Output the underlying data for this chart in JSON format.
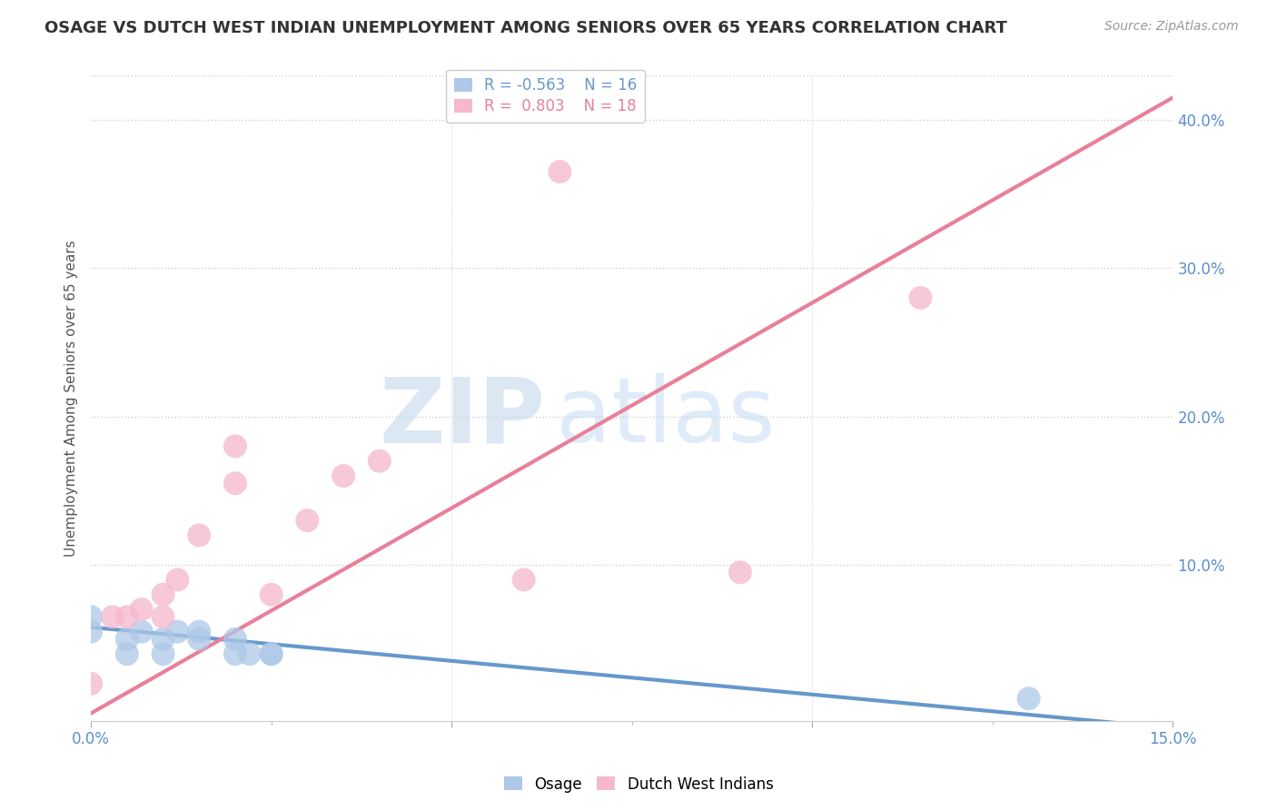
{
  "title": "OSAGE VS DUTCH WEST INDIAN UNEMPLOYMENT AMONG SENIORS OVER 65 YEARS CORRELATION CHART",
  "source": "Source: ZipAtlas.com",
  "ylabel": "Unemployment Among Seniors over 65 years",
  "xlim": [
    0.0,
    0.15
  ],
  "ylim": [
    -0.005,
    0.43
  ],
  "blue_scatter_x": [
    0.0,
    0.0,
    0.005,
    0.005,
    0.007,
    0.01,
    0.01,
    0.012,
    0.015,
    0.015,
    0.02,
    0.02,
    0.022,
    0.025,
    0.025,
    0.13
  ],
  "blue_scatter_y": [
    0.065,
    0.055,
    0.05,
    0.04,
    0.055,
    0.05,
    0.04,
    0.055,
    0.05,
    0.055,
    0.05,
    0.04,
    0.04,
    0.04,
    0.04,
    0.01
  ],
  "pink_scatter_x": [
    0.0,
    0.003,
    0.005,
    0.007,
    0.01,
    0.01,
    0.012,
    0.015,
    0.02,
    0.02,
    0.025,
    0.03,
    0.035,
    0.04,
    0.06,
    0.065,
    0.09,
    0.115
  ],
  "pink_scatter_y": [
    0.02,
    0.065,
    0.065,
    0.07,
    0.08,
    0.065,
    0.09,
    0.12,
    0.18,
    0.155,
    0.08,
    0.13,
    0.16,
    0.17,
    0.09,
    0.365,
    0.095,
    0.28
  ],
  "blue_R": -0.563,
  "blue_N": 16,
  "pink_R": 0.803,
  "pink_N": 18,
  "blue_color": "#adc8e8",
  "pink_color": "#f5b8cc",
  "blue_line_color": "#6698cc",
  "pink_line_color": "#e8809a",
  "title_fontsize": 13,
  "source_fontsize": 10,
  "watermark_zip": "ZIP",
  "watermark_atlas": "atlas",
  "background_color": "#ffffff",
  "grid_color": "#d0d0d0"
}
